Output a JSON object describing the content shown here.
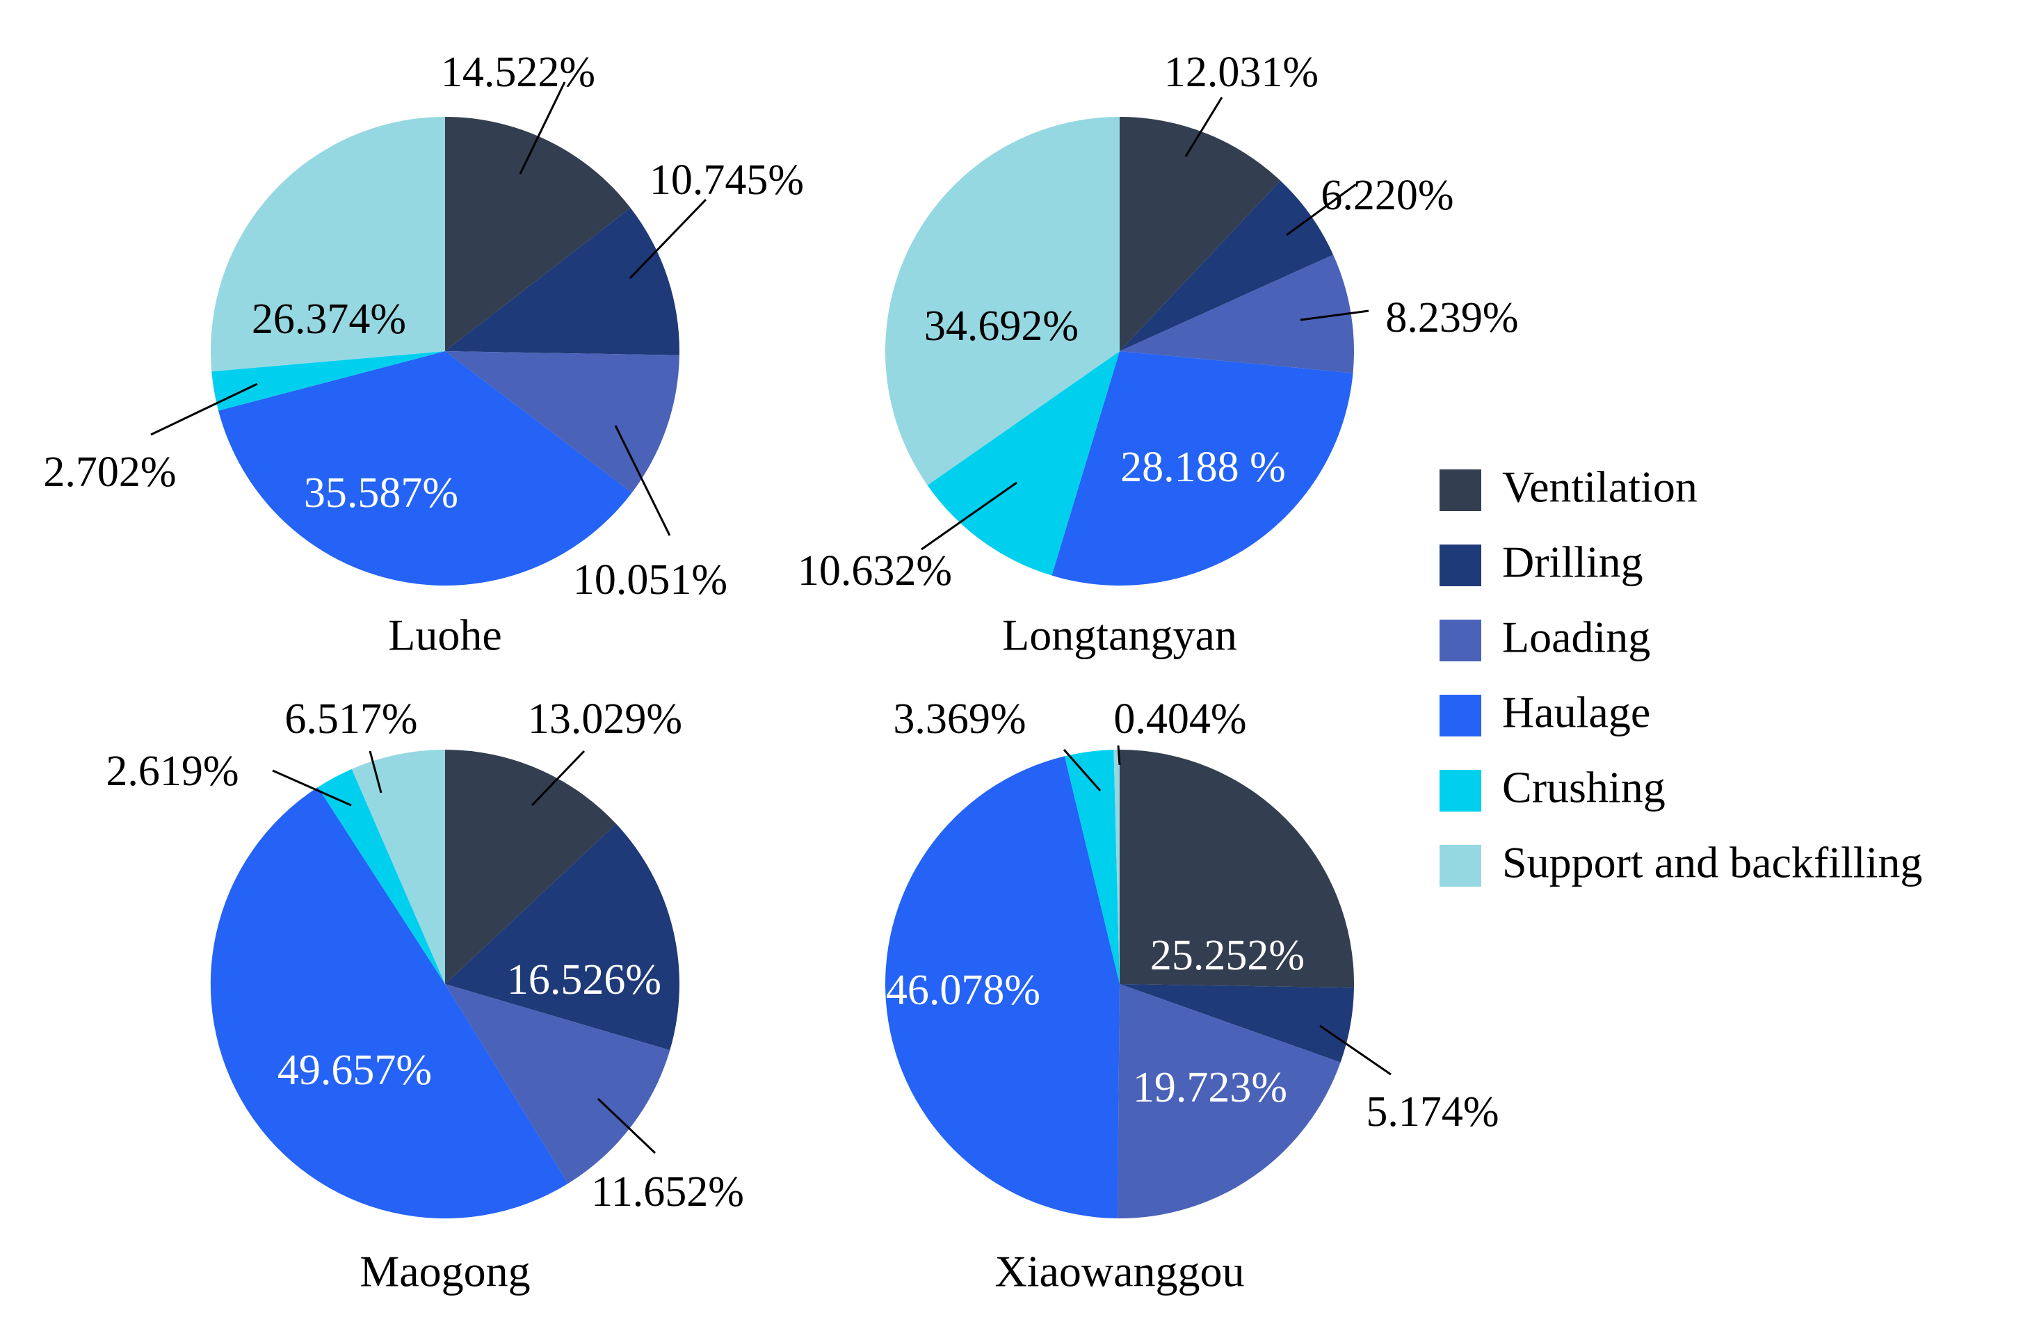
{
  "chart_data": [
    {
      "type": "pie",
      "title": "Luohe",
      "categories": [
        "Ventilation",
        "Drilling",
        "Loading",
        "Haulage",
        "Crushing",
        "Support and backfilling"
      ],
      "values": [
        14.522,
        10.745,
        10.051,
        35.587,
        2.702,
        26.374
      ],
      "labels": [
        "14.522%",
        "10.745%",
        "10.051%",
        "35.587%",
        "2.702%",
        "26.374%"
      ]
    },
    {
      "type": "pie",
      "title": "Longtangyan",
      "categories": [
        "Ventilation",
        "Drilling",
        "Loading",
        "Haulage",
        "Crushing",
        "Support and backfilling"
      ],
      "values": [
        12.031,
        6.22,
        8.239,
        28.188,
        10.632,
        34.692
      ],
      "labels": [
        "12.031%",
        "6.220%",
        "8.239%",
        "28.188 %",
        "10.632%",
        "34.692%"
      ]
    },
    {
      "type": "pie",
      "title": "Maogong",
      "categories": [
        "Ventilation",
        "Drilling",
        "Loading",
        "Haulage",
        "Crushing",
        "Support and backfilling"
      ],
      "values": [
        13.029,
        16.526,
        11.652,
        49.657,
        2.619,
        6.517
      ],
      "labels": [
        "13.029%",
        "16.526%",
        "11.652%",
        "49.657%",
        "2.619%",
        "6.517%"
      ]
    },
    {
      "type": "pie",
      "title": "Xiaowanggou",
      "categories": [
        "Ventilation",
        "Drilling",
        "Loading",
        "Haulage",
        "Crushing",
        "Support and backfilling"
      ],
      "values": [
        25.252,
        5.174,
        19.723,
        46.078,
        3.369,
        0.404
      ],
      "labels": [
        "25.252%",
        "5.174%",
        "19.723%",
        "46.078%",
        "3.369%",
        "0.404%"
      ]
    }
  ],
  "legend": {
    "items": [
      {
        "label": "Ventilation",
        "color": "#333f50"
      },
      {
        "label": "Drilling",
        "color": "#1f3a78"
      },
      {
        "label": "Loading",
        "color": "#4a62b8"
      },
      {
        "label": "Haulage",
        "color": "#2463f5"
      },
      {
        "label": "Crushing",
        "color": "#00d0ee"
      },
      {
        "label": "Support and backfilling",
        "color": "#95d8e2"
      }
    ]
  }
}
